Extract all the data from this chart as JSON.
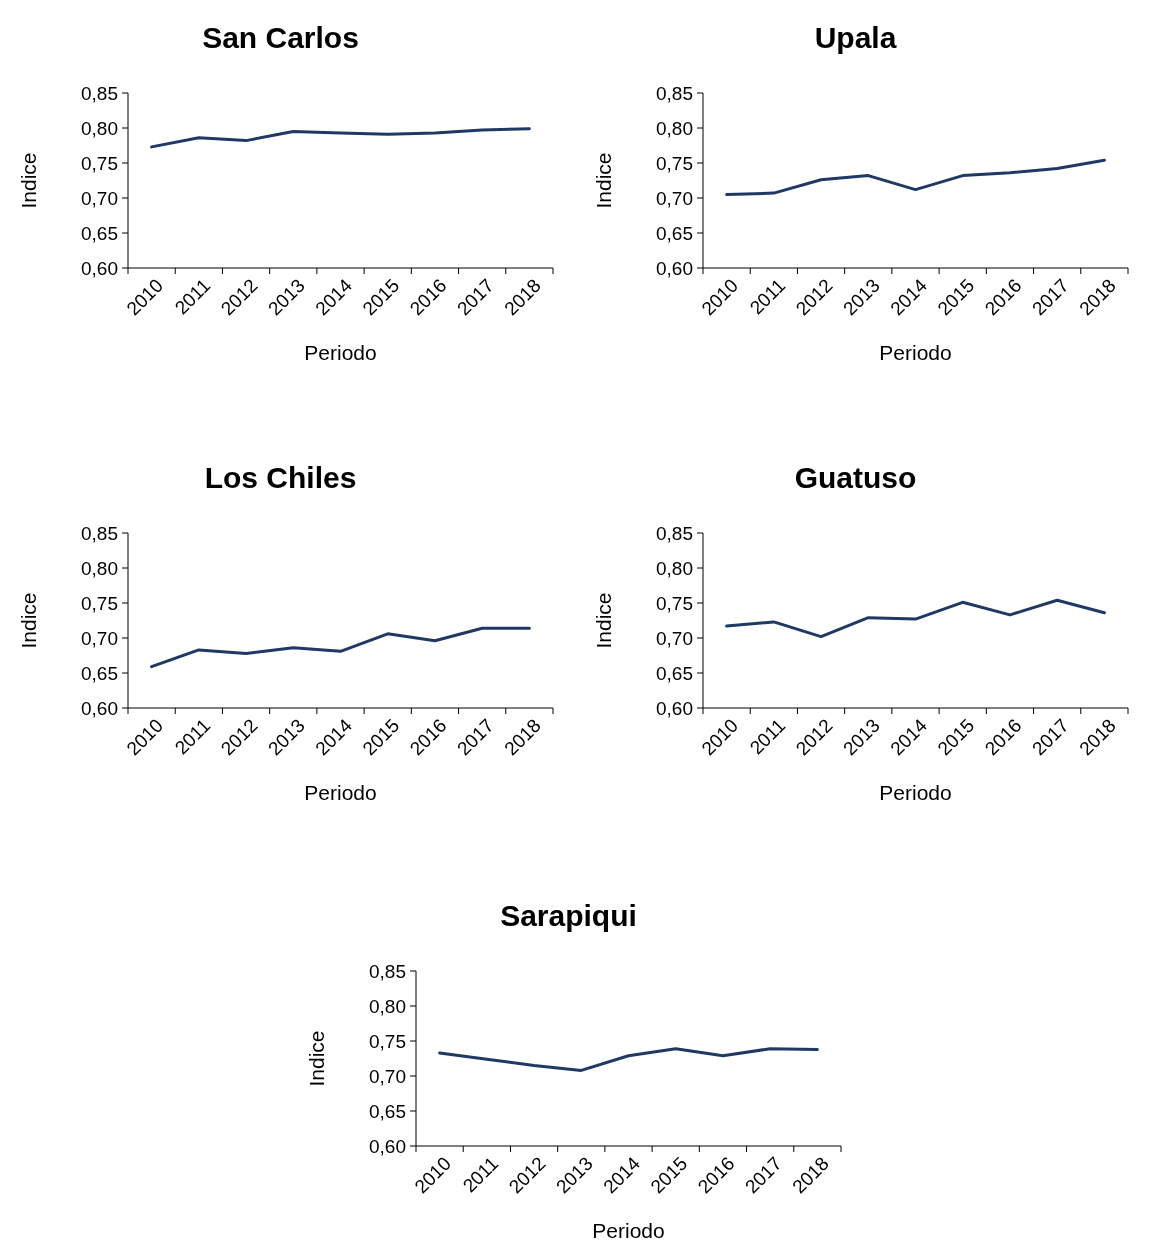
{
  "chart_data": [
    {
      "type": "line",
      "title": "San Carlos",
      "xlabel": "Periodo",
      "ylabel": "Indice",
      "categories": [
        "2010",
        "2011",
        "2012",
        "2013",
        "2014",
        "2015",
        "2016",
        "2017",
        "2018"
      ],
      "series": [
        {
          "color": "#203864",
          "values": [
            0.773,
            0.786,
            0.782,
            0.795,
            0.793,
            0.791,
            0.793,
            0.797,
            0.799
          ]
        }
      ],
      "ylim": [
        0.6,
        0.85
      ],
      "yticks": [
        {
          "value": 0.6,
          "label": "0,60"
        },
        {
          "value": 0.65,
          "label": "0,65"
        },
        {
          "value": 0.7,
          "label": "0,70"
        },
        {
          "value": 0.75,
          "label": "0,75"
        },
        {
          "value": 0.8,
          "label": "0,80"
        },
        {
          "value": 0.85,
          "label": "0,85"
        }
      ],
      "grid": false,
      "marker": "none"
    },
    {
      "type": "line",
      "title": "Upala",
      "xlabel": "Periodo",
      "ylabel": "Indice",
      "categories": [
        "2010",
        "2011",
        "2012",
        "2013",
        "2014",
        "2015",
        "2016",
        "2017",
        "2018"
      ],
      "series": [
        {
          "color": "#203864",
          "values": [
            0.705,
            0.707,
            0.726,
            0.732,
            0.712,
            0.732,
            0.736,
            0.742,
            0.754
          ]
        }
      ],
      "ylim": [
        0.6,
        0.85
      ],
      "yticks": [
        {
          "value": 0.6,
          "label": "0,60"
        },
        {
          "value": 0.65,
          "label": "0,65"
        },
        {
          "value": 0.7,
          "label": "0,70"
        },
        {
          "value": 0.75,
          "label": "0,75"
        },
        {
          "value": 0.8,
          "label": "0,80"
        },
        {
          "value": 0.85,
          "label": "0,85"
        }
      ],
      "grid": false,
      "marker": "none"
    },
    {
      "type": "line",
      "title": "Los Chiles",
      "xlabel": "Periodo",
      "ylabel": "Indice",
      "categories": [
        "2010",
        "2011",
        "2012",
        "2013",
        "2014",
        "2015",
        "2016",
        "2017",
        "2018"
      ],
      "series": [
        {
          "color": "#203864",
          "values": [
            0.659,
            0.683,
            0.678,
            0.686,
            0.681,
            0.706,
            0.696,
            0.714,
            0.714
          ]
        }
      ],
      "ylim": [
        0.6,
        0.85
      ],
      "yticks": [
        {
          "value": 0.6,
          "label": "0,60"
        },
        {
          "value": 0.65,
          "label": "0,65"
        },
        {
          "value": 0.7,
          "label": "0,70"
        },
        {
          "value": 0.75,
          "label": "0,75"
        },
        {
          "value": 0.8,
          "label": "0,80"
        },
        {
          "value": 0.85,
          "label": "0,85"
        }
      ],
      "grid": false,
      "marker": "none"
    },
    {
      "type": "line",
      "title": "Guatuso",
      "xlabel": "Periodo",
      "ylabel": "Indice",
      "categories": [
        "2010",
        "2011",
        "2012",
        "2013",
        "2014",
        "2015",
        "2016",
        "2017",
        "2018"
      ],
      "series": [
        {
          "color": "#203864",
          "values": [
            0.717,
            0.723,
            0.702,
            0.729,
            0.727,
            0.751,
            0.733,
            0.754,
            0.736
          ]
        }
      ],
      "ylim": [
        0.6,
        0.85
      ],
      "yticks": [
        {
          "value": 0.6,
          "label": "0,60"
        },
        {
          "value": 0.65,
          "label": "0,65"
        },
        {
          "value": 0.7,
          "label": "0,70"
        },
        {
          "value": 0.75,
          "label": "0,75"
        },
        {
          "value": 0.8,
          "label": "0,80"
        },
        {
          "value": 0.85,
          "label": "0,85"
        }
      ],
      "grid": false,
      "marker": "none"
    },
    {
      "type": "line",
      "title": "Sarapiqui",
      "xlabel": "Periodo",
      "ylabel": "Indice",
      "categories": [
        "2010",
        "2011",
        "2012",
        "2013",
        "2014",
        "2015",
        "2016",
        "2017",
        "2018"
      ],
      "series": [
        {
          "color": "#203864",
          "values": [
            0.733,
            0.724,
            0.715,
            0.708,
            0.729,
            0.739,
            0.729,
            0.739,
            0.738
          ]
        }
      ],
      "ylim": [
        0.6,
        0.85
      ],
      "yticks": [
        {
          "value": 0.6,
          "label": "0,60"
        },
        {
          "value": 0.65,
          "label": "0,65"
        },
        {
          "value": 0.7,
          "label": "0,70"
        },
        {
          "value": 0.75,
          "label": "0,75"
        },
        {
          "value": 0.8,
          "label": "0,80"
        },
        {
          "value": 0.85,
          "label": "0,85"
        }
      ],
      "grid": false,
      "marker": "none"
    }
  ]
}
